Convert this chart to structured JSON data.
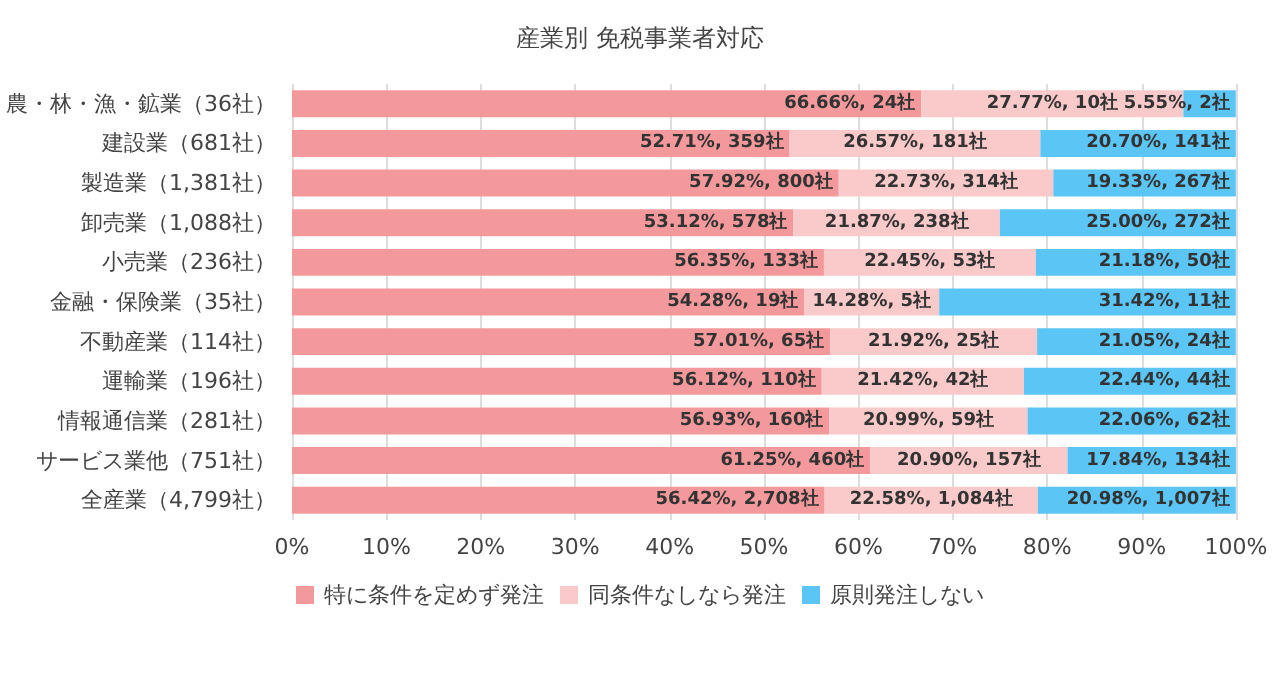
{
  "chart_data": {
    "type": "bar",
    "orientation": "horizontal",
    "stacked": true,
    "title": "産業別 免税事業者対応",
    "categories": [
      "農・林・漁・鉱業（36社）",
      "建設業（681社）",
      "製造業（1,381社）",
      "卸売業（1,088社）",
      "小売業（236社）",
      "金融・保険業（35社）",
      "不動産業（114社）",
      "運輸業（196社）",
      "情報通信業（281社）",
      "サービス業他（751社）",
      "全産業（4,799社）"
    ],
    "series": [
      {
        "name": "特に条件を定めず発注",
        "color": "#f4999b",
        "values": [
          66.66,
          52.71,
          57.92,
          53.12,
          56.35,
          54.28,
          57.01,
          56.12,
          56.93,
          61.25,
          56.42
        ],
        "value_labels": [
          "66.66%, 24社",
          "52.71%, 359社",
          "57.92%, 800社",
          "53.12%, 578社",
          "56.35%, 133社",
          "54.28%, 19社",
          "57.01%, 65社",
          "56.12%, 110社",
          "56.93%, 160社",
          "61.25%, 460社",
          "56.42%, 2,708社"
        ]
      },
      {
        "name": "同条件なしなら発注",
        "color": "#fac9ca",
        "values": [
          27.77,
          26.57,
          22.73,
          21.87,
          22.45,
          14.28,
          21.92,
          21.42,
          20.99,
          20.9,
          22.58
        ],
        "value_labels": [
          "27.77%, 10社",
          "26.57%, 181社",
          "22.73%, 314社",
          "21.87%, 238社",
          "22.45%, 53社",
          "14.28%, 5社",
          "21.92%, 25社",
          "21.42%, 42社",
          "20.99%, 59社",
          "20.90%, 157社",
          "22.58%, 1,084社"
        ]
      },
      {
        "name": "原則発注しない",
        "color": "#5bc5f5",
        "values": [
          5.55,
          20.7,
          19.33,
          25.0,
          21.18,
          31.42,
          21.05,
          22.44,
          22.06,
          17.84,
          20.98
        ],
        "value_labels": [
          "5.55%, 2社",
          "20.70%, 141社",
          "19.33%, 267社",
          "25.00%, 272社",
          "21.18%, 50社",
          "31.42%, 11社",
          "21.05%, 24社",
          "22.44%, 44社",
          "22.06%, 62社",
          "17.84%, 134社",
          "20.98%, 1,007社"
        ]
      }
    ],
    "xlim": [
      0,
      100
    ],
    "xticks": [
      {
        "value": 0,
        "label": "0%"
      },
      {
        "value": 10,
        "label": "10%"
      },
      {
        "value": 20,
        "label": "20%"
      },
      {
        "value": 30,
        "label": "30%"
      },
      {
        "value": 40,
        "label": "40%"
      },
      {
        "value": 50,
        "label": "50%"
      },
      {
        "value": 60,
        "label": "60%"
      },
      {
        "value": 70,
        "label": "70%"
      },
      {
        "value": 80,
        "label": "80%"
      },
      {
        "value": 90,
        "label": "90%"
      },
      {
        "value": 100,
        "label": "100%"
      }
    ],
    "grid": "x",
    "legend": "bottom"
  }
}
